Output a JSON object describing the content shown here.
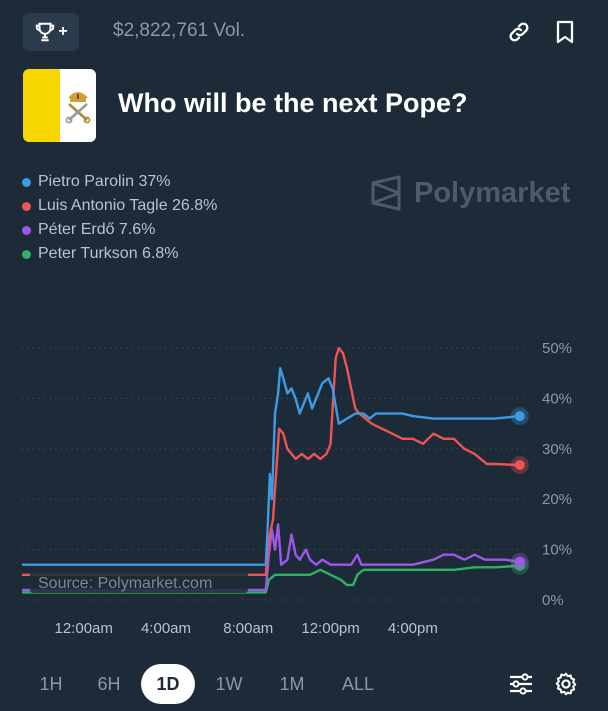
{
  "header": {
    "trophy_plus": "+",
    "volume": "$2,822,761 Vol.",
    "icons": [
      "trophy-icon",
      "link-icon",
      "bookmark-icon"
    ]
  },
  "market": {
    "title": "Who will be the next Pope?"
  },
  "watermark": "Polymarket",
  "source": "Source: Polymarket.com",
  "colors": {
    "background": "#1d2b39",
    "parolin": "#3d9be6",
    "tagle": "#ee5454",
    "erdo": "#9d58e8",
    "turkson": "#2fb263",
    "vatican_yellow": "#f8d700"
  },
  "chart_data": {
    "type": "line",
    "title": "Who will be the next Pope?",
    "ylim": [
      0,
      52
    ],
    "y_ticks": [
      {
        "v": 0,
        "label": "0%"
      },
      {
        "v": 10,
        "label": "10%"
      },
      {
        "v": 20,
        "label": "20%"
      },
      {
        "v": 30,
        "label": "30%"
      },
      {
        "v": 40,
        "label": "40%"
      },
      {
        "v": 50,
        "label": "50%"
      }
    ],
    "xlim": [
      -3,
      21.5
    ],
    "x_ticks": [
      {
        "v": 0,
        "label": "12:00am"
      },
      {
        "v": 4,
        "label": "4:00am"
      },
      {
        "v": 8,
        "label": "8:00am"
      },
      {
        "v": 12,
        "label": "12:00pm"
      },
      {
        "v": 16,
        "label": "4:00pm"
      }
    ],
    "series": [
      {
        "name": "Pietro Parolin",
        "legend": "Pietro Parolin 37%",
        "color": "#3d9be6",
        "points": [
          [
            -3,
            7
          ],
          [
            8.85,
            7
          ],
          [
            8.95,
            15
          ],
          [
            9.05,
            25
          ],
          [
            9.15,
            20
          ],
          [
            9.3,
            37
          ],
          [
            9.45,
            41
          ],
          [
            9.55,
            46
          ],
          [
            9.7,
            44
          ],
          [
            9.9,
            41
          ],
          [
            10.1,
            42
          ],
          [
            10.3,
            40
          ],
          [
            10.5,
            37
          ],
          [
            10.7,
            39
          ],
          [
            10.9,
            41
          ],
          [
            11.1,
            38
          ],
          [
            11.3,
            40
          ],
          [
            11.6,
            43
          ],
          [
            11.9,
            44
          ],
          [
            12.1,
            42
          ],
          [
            12.4,
            35
          ],
          [
            12.8,
            36
          ],
          [
            13.2,
            37
          ],
          [
            13.6,
            37
          ],
          [
            13.9,
            36
          ],
          [
            14.2,
            37
          ],
          [
            14.5,
            37
          ],
          [
            15,
            37
          ],
          [
            15.5,
            37
          ],
          [
            16,
            36.5
          ],
          [
            17,
            36
          ],
          [
            18,
            36
          ],
          [
            19,
            36
          ],
          [
            20,
            36
          ],
          [
            21.2,
            36.5
          ]
        ]
      },
      {
        "name": "Luis Antonio Tagle",
        "legend": "Luis Antonio Tagle 26.8%",
        "color": "#ee5454",
        "points": [
          [
            -3,
            5
          ],
          [
            8.85,
            5
          ],
          [
            9.0,
            12
          ],
          [
            9.2,
            16
          ],
          [
            9.35,
            25
          ],
          [
            9.5,
            34
          ],
          [
            9.7,
            33
          ],
          [
            9.9,
            30
          ],
          [
            10.1,
            29
          ],
          [
            10.3,
            28
          ],
          [
            10.6,
            29
          ],
          [
            10.9,
            28
          ],
          [
            11.2,
            29
          ],
          [
            11.5,
            28
          ],
          [
            11.8,
            29
          ],
          [
            12.0,
            31
          ],
          [
            12.1,
            38
          ],
          [
            12.25,
            48
          ],
          [
            12.4,
            50
          ],
          [
            12.6,
            49
          ],
          [
            12.8,
            46
          ],
          [
            13.0,
            42
          ],
          [
            13.2,
            38
          ],
          [
            13.4,
            37
          ],
          [
            13.7,
            36
          ],
          [
            14.0,
            35
          ],
          [
            14.5,
            34
          ],
          [
            15,
            33
          ],
          [
            15.5,
            32
          ],
          [
            16,
            32
          ],
          [
            16.5,
            31
          ],
          [
            17,
            33
          ],
          [
            17.5,
            32
          ],
          [
            18,
            32
          ],
          [
            18.5,
            30
          ],
          [
            19,
            29
          ],
          [
            19.3,
            28
          ],
          [
            19.6,
            27
          ],
          [
            20,
            27
          ],
          [
            21.2,
            26.8
          ]
        ]
      },
      {
        "name": "Péter Erdő",
        "legend": "Péter Erdő 7.6%",
        "color": "#9d58e8",
        "points": [
          [
            -3,
            2
          ],
          [
            8.85,
            2
          ],
          [
            9.0,
            9
          ],
          [
            9.15,
            14
          ],
          [
            9.3,
            10
          ],
          [
            9.45,
            15
          ],
          [
            9.6,
            7
          ],
          [
            9.9,
            8
          ],
          [
            10.1,
            13
          ],
          [
            10.3,
            9
          ],
          [
            10.5,
            8
          ],
          [
            10.8,
            10
          ],
          [
            11.0,
            8
          ],
          [
            11.3,
            7
          ],
          [
            11.6,
            8
          ],
          [
            12,
            7
          ],
          [
            12.5,
            7
          ],
          [
            13,
            7
          ],
          [
            13.3,
            9
          ],
          [
            13.5,
            7
          ],
          [
            14,
            7
          ],
          [
            15,
            7
          ],
          [
            16,
            7
          ],
          [
            17,
            8
          ],
          [
            17.5,
            9
          ],
          [
            18,
            9
          ],
          [
            18.5,
            8
          ],
          [
            19,
            9
          ],
          [
            19.5,
            8
          ],
          [
            20,
            8
          ],
          [
            20.5,
            8
          ],
          [
            21.2,
            7.6
          ]
        ]
      },
      {
        "name": "Peter Turkson",
        "legend": "Peter Turkson 6.8%",
        "color": "#2fb263",
        "points": [
          [
            -3,
            1.5
          ],
          [
            8.85,
            1.5
          ],
          [
            9.0,
            4
          ],
          [
            9.3,
            5
          ],
          [
            9.6,
            5
          ],
          [
            10,
            5
          ],
          [
            10.5,
            5
          ],
          [
            11,
            5
          ],
          [
            11.5,
            6
          ],
          [
            12,
            5
          ],
          [
            12.5,
            4
          ],
          [
            12.8,
            3
          ],
          [
            13.1,
            3
          ],
          [
            13.3,
            5
          ],
          [
            13.6,
            6
          ],
          [
            14,
            6
          ],
          [
            15,
            6
          ],
          [
            16,
            6
          ],
          [
            17,
            6
          ],
          [
            18,
            6
          ],
          [
            19,
            6.5
          ],
          [
            20,
            6.5
          ],
          [
            21.2,
            6.8
          ]
        ]
      }
    ]
  },
  "timeframes": [
    {
      "label": "1H",
      "selected": false
    },
    {
      "label": "6H",
      "selected": false
    },
    {
      "label": "1D",
      "selected": true
    },
    {
      "label": "1W",
      "selected": false
    },
    {
      "label": "1M",
      "selected": false
    },
    {
      "label": "ALL",
      "selected": false
    }
  ]
}
